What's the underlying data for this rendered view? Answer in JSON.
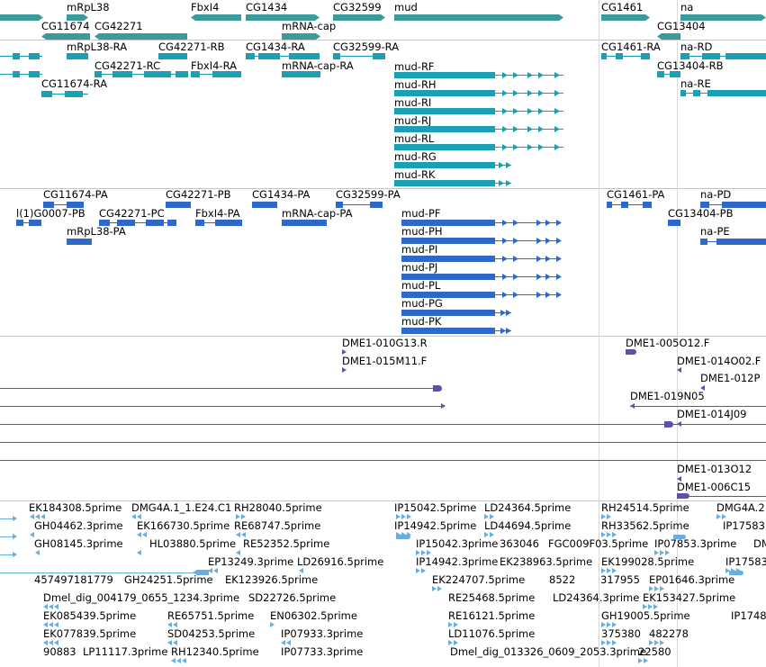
{
  "colors": {
    "gene": "#3a9b9a",
    "transcript": "#1a9fb3",
    "protein": "#3068c8",
    "clone": "#6050a8",
    "est": "#6aaedc",
    "separator": "#c6c6c6"
  },
  "genes": [
    "mRpL38",
    "CG11674",
    "CG42271",
    "FbxI4",
    "CG1434",
    "mRNA-cap",
    "CG32599",
    "mud",
    "CG1461",
    "na",
    "CG13404"
  ],
  "transcripts": [
    "CG11674-RA",
    "mRpL38-RA",
    "CG42271-RC",
    "CG42271-RB",
    "FbxI4-RA",
    "CG1434-RA",
    "mRNA-cap-RA",
    "CG32599-RA",
    "mud-RF",
    "mud-RH",
    "mud-RI",
    "mud-RJ",
    "mud-RL",
    "mud-RG",
    "mud-RK",
    "CG1461-RA",
    "na-RD",
    "CG13404-RB",
    "na-RE"
  ],
  "proteins": [
    "CG11674-PA",
    "l(1)G0007-PB",
    "mRpL38-PA",
    "CG42271-PC",
    "CG42271-PB",
    "FbxI4-PA",
    "CG1434-PA",
    "mRNA-cap-PA",
    "CG32599-PA",
    "mud-PF",
    "mud-PH",
    "mud-PI",
    "mud-PJ",
    "mud-PL",
    "mud-PG",
    "mud-PK",
    "CG1461-PA",
    "CG13404-PB",
    "na-PD",
    "na-PE"
  ],
  "clones": [
    "DME1-010G13.R",
    "DME1-015M11.F",
    "DME1-005O12.F",
    "DME1-014O02.F",
    "DME1-012P",
    "DME1-019N05",
    "DME1-014J09",
    "DME1-013O12",
    "DME1-006C15"
  ],
  "ests": [
    "EK184308.5prime",
    "DMG4A.1_1.E24.C1",
    "RH28040.5prime",
    "GH04462.3prime",
    "EK166730.5prime",
    "RE68747.5prime",
    "GH08145.3prime",
    "HL03880.5prime",
    "RE52352.5prime",
    "EP13249.3prime",
    "LD26916.5prime",
    "457497181779",
    "GH24251.5prime",
    "EK123926.5prime",
    "Dmel_dig_004179_0655_1234.3prime",
    "SD22726.5prime",
    "EK085439.5prime",
    "RE65751.5prime",
    "EN06302.5prime",
    "EK077839.5prime",
    "SD04253.5prime",
    "IP07933.3prime",
    "90883",
    "LP11117.3prime",
    "RH12340.5prime",
    "IP07733.3prime",
    "IP15042.5prime",
    "LD24364.5prime",
    "IP14942.5prime",
    "LD44694.5prime",
    "IP15042.3prime",
    "363046",
    "FGC009F03.5prime",
    "IP14942.3prime",
    "EK238963.5prime",
    "EK224707.5prime",
    "8522",
    "RE25468.5prime",
    "LD24364.3prime",
    "RE16121.5prime",
    "LD11076.5prime",
    "Dmel_dig_013326_0609_2053.3prime",
    "RH24514.5prime",
    "DMG4A.2",
    "RH33562.5prime",
    "IP17583",
    "IP07853.3prime",
    "DM",
    "EK199028.5prime",
    "IP17583",
    "317955",
    "EP01646.3prime",
    "EK153427.5prime",
    "GH19005.5prime",
    "IP1748",
    "375380",
    "482278",
    "22580"
  ]
}
